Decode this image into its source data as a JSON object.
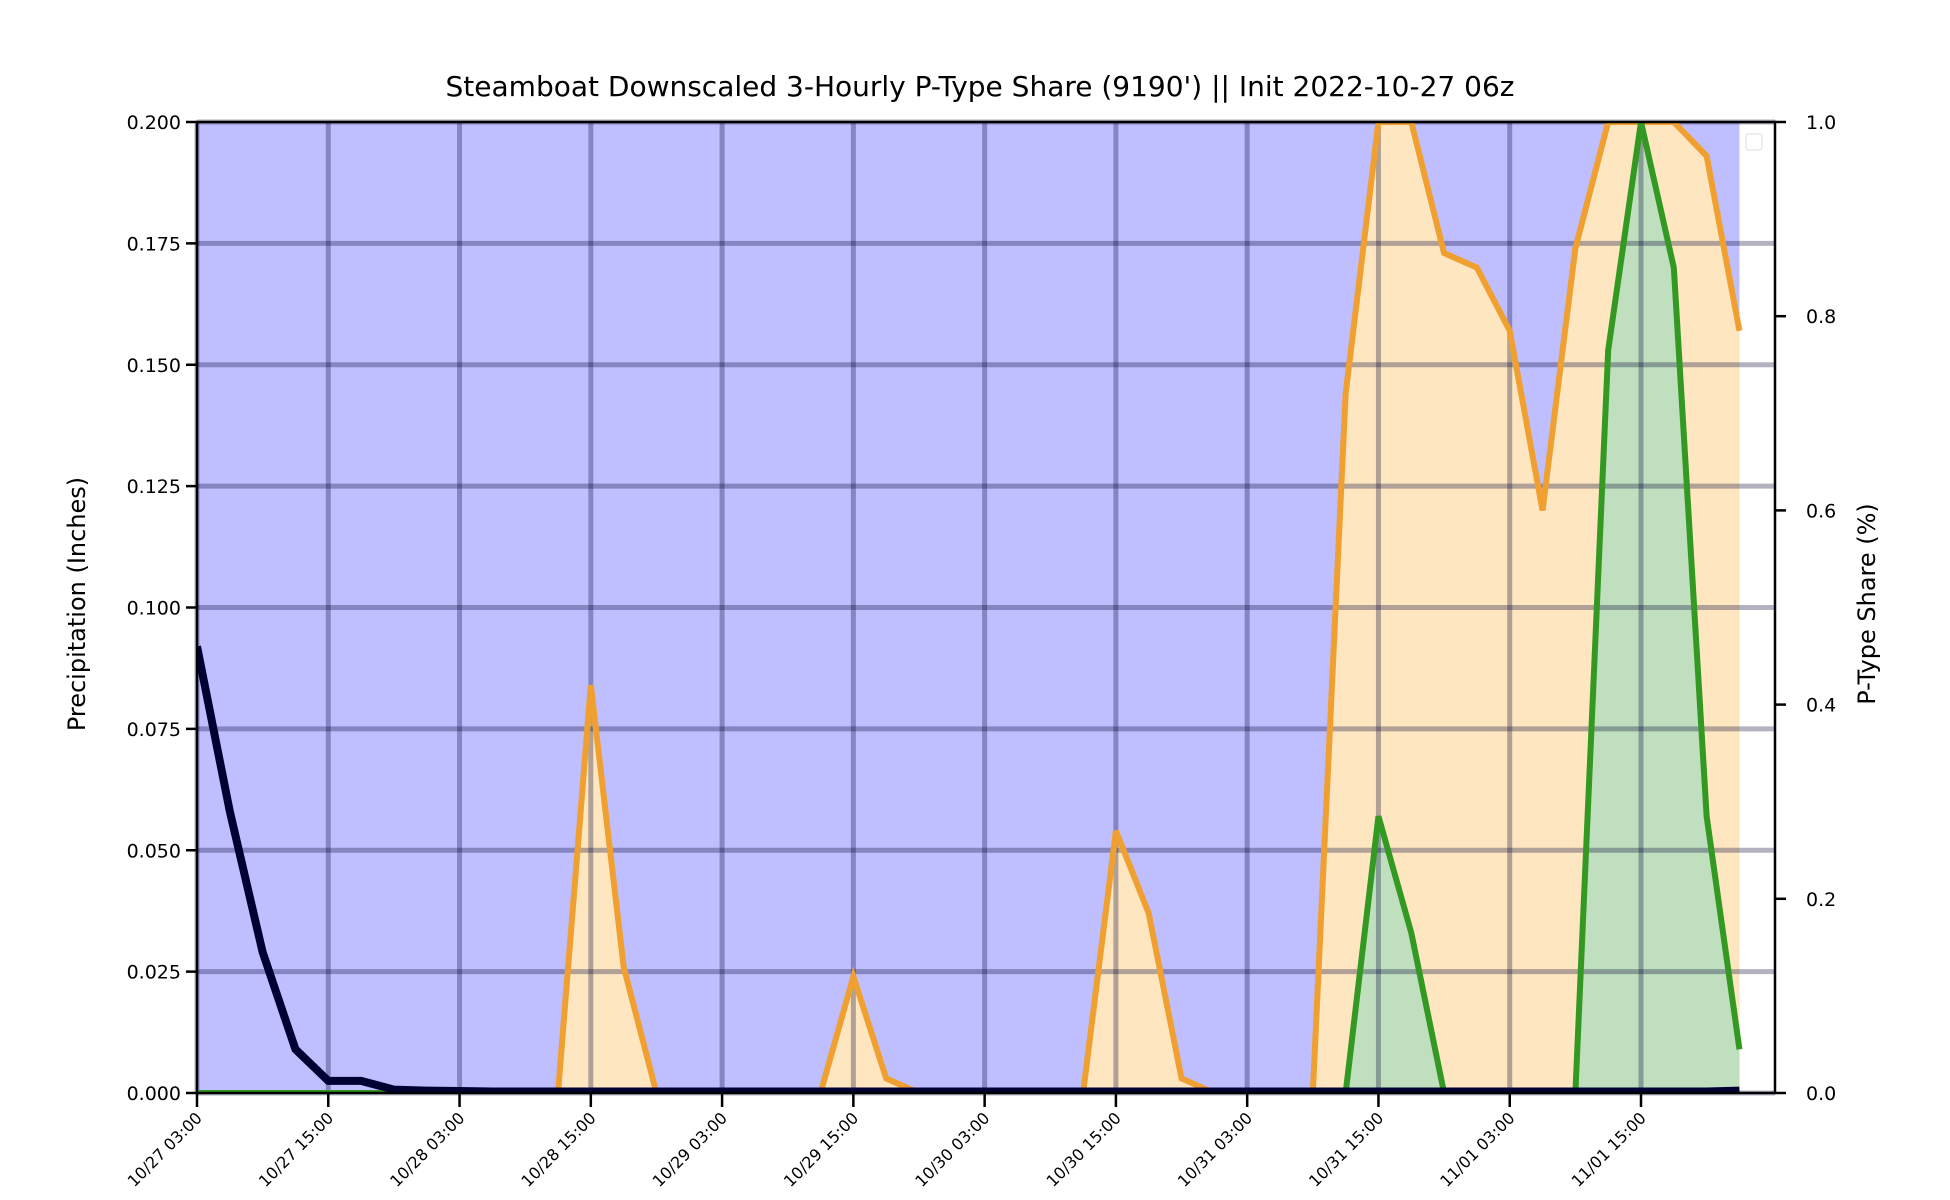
{
  "chart_data": {
    "type": "area",
    "title": "Steamboat Downscaled 3-Hourly P-Type Share (9190') || Init 2022-10-27 06z",
    "ylabel_left": "Precipitation (Inches)",
    "ylabel_right": "P-Type Share (%)",
    "ylim_left": [
      0,
      0.2
    ],
    "ylim_right": [
      0,
      1.0
    ],
    "yticks_left": [
      "0.000",
      "0.025",
      "0.050",
      "0.075",
      "0.100",
      "0.125",
      "0.150",
      "0.175",
      "0.200"
    ],
    "yticks_right": [
      "0.0",
      "0.2",
      "0.4",
      "0.6",
      "0.8",
      "1.0"
    ],
    "xticks": [
      "10/27 03:00",
      "10/27 15:00",
      "10/28 03:00",
      "10/28 15:00",
      "10/29 03:00",
      "10/29 15:00",
      "10/30 03:00",
      "10/30 15:00",
      "10/31 03:00",
      "10/31 15:00",
      "11/01 03:00",
      "11/01 15:00"
    ],
    "x": [
      "10/27 03:00",
      "10/27 06:00",
      "10/27 09:00",
      "10/27 12:00",
      "10/27 15:00",
      "10/27 18:00",
      "10/27 21:00",
      "10/28 00:00",
      "10/28 03:00",
      "10/28 06:00",
      "10/28 09:00",
      "10/28 12:00",
      "10/28 15:00",
      "10/28 18:00",
      "10/28 21:00",
      "10/29 00:00",
      "10/29 03:00",
      "10/29 06:00",
      "10/29 09:00",
      "10/29 12:00",
      "10/29 15:00",
      "10/29 18:00",
      "10/29 21:00",
      "10/30 00:00",
      "10/30 03:00",
      "10/30 06:00",
      "10/30 09:00",
      "10/30 12:00",
      "10/30 15:00",
      "10/30 18:00",
      "10/30 21:00",
      "10/31 00:00",
      "10/31 03:00",
      "10/31 06:00",
      "10/31 09:00",
      "10/31 12:00",
      "10/31 15:00",
      "10/31 18:00",
      "10/31 21:00",
      "11/01 00:00",
      "11/01 03:00",
      "11/01 06:00",
      "11/01 09:00",
      "11/01 12:00",
      "11/01 15:00",
      "11/01 18:00",
      "11/01 21:00",
      "11/02 00:00"
    ],
    "series": [
      {
        "role": "snow-share-fill",
        "axis": "right",
        "color": "#bfbfff",
        "values": [
          1,
          1,
          1,
          1,
          1,
          1,
          1,
          1,
          1,
          1,
          1,
          1,
          1,
          1,
          1,
          1,
          1,
          1,
          1,
          1,
          1,
          1,
          1,
          1,
          1,
          1,
          1,
          1,
          1,
          1,
          1,
          1,
          1,
          1,
          1,
          1,
          1,
          1,
          1,
          1,
          1,
          1,
          1,
          1,
          1,
          1,
          1,
          1
        ]
      },
      {
        "role": "mixed-share",
        "axis": "right",
        "color": "#f0a030",
        "fill": "#fde6c0",
        "values": [
          0,
          0,
          0,
          0,
          0,
          0,
          0,
          0,
          0,
          0,
          0,
          0,
          0.42,
          0.13,
          0,
          0,
          0,
          0,
          0,
          0,
          0.12,
          0.015,
          0,
          0,
          0,
          0,
          0,
          0,
          0.27,
          0.185,
          0.015,
          0,
          0,
          0,
          0,
          0.72,
          1.0,
          1.0,
          0.865,
          0.85,
          0.785,
          0.6,
          0.87,
          1.0,
          1.0,
          1.0,
          0.965,
          0.785
        ]
      },
      {
        "role": "rain-share",
        "axis": "right",
        "color": "#339922",
        "fill": "#bfdfbf",
        "values": [
          0,
          0,
          0,
          0,
          0,
          0,
          0,
          0,
          0,
          0,
          0,
          0,
          0,
          0,
          0,
          0,
          0,
          0,
          0,
          0,
          0,
          0,
          0,
          0,
          0,
          0,
          0,
          0,
          0,
          0,
          0,
          0,
          0,
          0,
          0,
          0,
          0.285,
          0.165,
          0,
          0,
          0,
          0,
          0,
          0.765,
          1.0,
          0.85,
          0.285,
          0.045
        ]
      },
      {
        "role": "precipitation",
        "axis": "left",
        "color": "#000033",
        "values": [
          0.092,
          0.058,
          0.029,
          0.009,
          0.0025,
          0.0025,
          0.0007,
          0.0005,
          0.0004,
          0.0003,
          0.0003,
          0.0003,
          0.0003,
          0.0003,
          0.0003,
          0.0003,
          0.0003,
          0.0003,
          0.0003,
          0.0003,
          0.0003,
          0.0003,
          0.0003,
          0.0003,
          0.0003,
          0.0003,
          0.0003,
          0.0003,
          0.0003,
          0.0003,
          0.0003,
          0.0003,
          0.0003,
          0.0003,
          0.0003,
          0.0003,
          0.0003,
          0.0003,
          0.0003,
          0.0003,
          0.0003,
          0.0003,
          0.0003,
          0.0003,
          0.0003,
          0.0003,
          0.0003,
          0.0005
        ]
      }
    ],
    "grid": true,
    "legend": "top-right"
  }
}
